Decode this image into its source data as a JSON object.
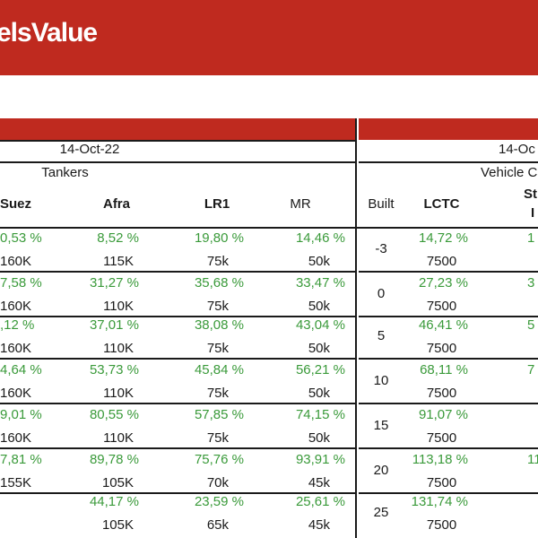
{
  "brand": "elsValue",
  "left": {
    "date": "14-Oct-22",
    "group": "Tankers",
    "columns": [
      "Suez",
      "Afra",
      "LR1",
      "MR"
    ],
    "rows": [
      {
        "pct": [
          "0,53 %",
          "8,52 %",
          "19,80 %",
          "14,46 %"
        ],
        "size": [
          "160K",
          "115K",
          "75k",
          "50k"
        ]
      },
      {
        "pct": [
          "7,58 %",
          "31,27 %",
          "35,68 %",
          "33,47 %"
        ],
        "size": [
          "160K",
          "110K",
          "75k",
          "50k"
        ]
      },
      {
        "pct": [
          ",12 %",
          "37,01 %",
          "38,08 %",
          "43,04 %"
        ],
        "size": [
          "160K",
          "110K",
          "75k",
          "50k"
        ]
      },
      {
        "pct": [
          "4,64 %",
          "53,73 %",
          "45,84 %",
          "56,21 %"
        ],
        "size": [
          "160K",
          "110K",
          "75k",
          "50k"
        ]
      },
      {
        "pct": [
          "9,01 %",
          "80,55 %",
          "57,85 %",
          "74,15 %"
        ],
        "size": [
          "160K",
          "110K",
          "75k",
          "50k"
        ]
      },
      {
        "pct": [
          "7,81 %",
          "89,78 %",
          "75,76 %",
          "93,91 %"
        ],
        "size": [
          "155K",
          "105K",
          "70k",
          "45k"
        ]
      },
      {
        "pct": [
          "",
          "44,17 %",
          "23,59 %",
          "25,61 %"
        ],
        "size": [
          "",
          "105K",
          "65k",
          "45k"
        ]
      }
    ]
  },
  "right": {
    "date": "14-Oc",
    "group": "Vehicle C",
    "built_header": "Built",
    "lctc_header": "LCTC",
    "next_header_top": "St",
    "next_header_bottom": "I",
    "rows": [
      {
        "built": "-3",
        "pct": "14,72 %",
        "size": "7500",
        "next": "1"
      },
      {
        "built": "0",
        "pct": "27,23 %",
        "size": "7500",
        "next": "3"
      },
      {
        "built": "5",
        "pct": "46,41 %",
        "size": "7500",
        "next": "5"
      },
      {
        "built": "10",
        "pct": "68,11 %",
        "size": "7500",
        "next": "7"
      },
      {
        "built": "15",
        "pct": "91,07 %",
        "size": "7500",
        "next": ""
      },
      {
        "built": "20",
        "pct": "113,18 %",
        "size": "7500",
        "next": "11"
      },
      {
        "built": "25",
        "pct": "131,74 %",
        "size": "7500",
        "next": ""
      }
    ]
  }
}
